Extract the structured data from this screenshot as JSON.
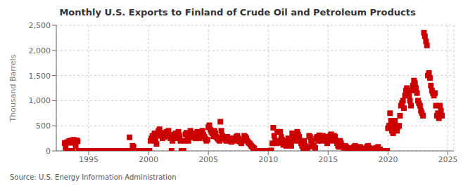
{
  "chart_data": {
    "type": "scatter",
    "title": "Monthly U.S. Exports to Finland of Crude Oil and Petroleum Products",
    "ylabel": "Thousand Barrels",
    "annotation": "Source: U.S. Energy Information Administration",
    "color": "#CC0000",
    "marker": "square",
    "grid": true,
    "xlim": [
      1992.3,
      2025.5
    ],
    "xticks": [
      1995,
      2000,
      2005,
      2010,
      2015,
      2020,
      2025
    ],
    "ylim": [
      0,
      2500
    ],
    "yticks": [
      0,
      500,
      {
        "value": 1000,
        "label": "1,000"
      },
      {
        "value": 1500,
        "label": "1,500"
      },
      {
        "value": 2000,
        "label": "2,000"
      },
      {
        "value": 2500,
        "label": "2,500"
      }
    ],
    "x": [
      1993.0,
      1993.08,
      1993.17,
      1993.25,
      1993.33,
      1993.42,
      1993.5,
      1993.58,
      1993.67,
      1993.75,
      1993.83,
      1993.92,
      1994.0,
      1994.08,
      1994.17,
      1994.25,
      1994.33,
      1994.42,
      1994.5,
      1994.58,
      1994.67,
      1994.75,
      1994.83,
      1994.92,
      1995.0,
      1995.08,
      1995.17,
      1995.25,
      1995.33,
      1995.42,
      1995.5,
      1995.58,
      1995.67,
      1995.75,
      1995.83,
      1995.92,
      1996.0,
      1996.08,
      1996.17,
      1996.25,
      1996.33,
      1996.42,
      1996.5,
      1996.58,
      1996.67,
      1996.75,
      1996.83,
      1996.92,
      1997.0,
      1997.08,
      1997.17,
      1997.25,
      1997.33,
      1997.42,
      1997.5,
      1997.58,
      1997.67,
      1997.75,
      1997.83,
      1997.92,
      1998.0,
      1998.08,
      1998.17,
      1998.25,
      1998.33,
      1998.42,
      1998.5,
      1998.58,
      1998.67,
      1998.75,
      1998.83,
      1998.92,
      1999.0,
      1999.08,
      1999.17,
      1999.25,
      1999.33,
      1999.42,
      1999.5,
      1999.58,
      1999.67,
      1999.75,
      1999.83,
      1999.92,
      2000.0,
      2000.08,
      2000.17,
      2000.25,
      2000.33,
      2000.42,
      2000.5,
      2000.58,
      2000.67,
      2000.75,
      2000.83,
      2000.92,
      2001.0,
      2001.08,
      2001.17,
      2001.25,
      2001.33,
      2001.42,
      2001.5,
      2001.58,
      2001.67,
      2001.75,
      2001.83,
      2001.92,
      2002.0,
      2002.08,
      2002.17,
      2002.25,
      2002.33,
      2002.42,
      2002.5,
      2002.58,
      2002.67,
      2002.75,
      2002.83,
      2002.92,
      2003.0,
      2003.08,
      2003.17,
      2003.25,
      2003.33,
      2003.42,
      2003.5,
      2003.58,
      2003.67,
      2003.75,
      2003.83,
      2003.92,
      2004.0,
      2004.08,
      2004.17,
      2004.25,
      2004.33,
      2004.42,
      2004.5,
      2004.58,
      2004.67,
      2004.75,
      2004.83,
      2004.92,
      2005.0,
      2005.08,
      2005.17,
      2005.25,
      2005.33,
      2005.42,
      2005.5,
      2005.58,
      2005.67,
      2005.75,
      2005.83,
      2005.92,
      2006.0,
      2006.08,
      2006.17,
      2006.25,
      2006.33,
      2006.42,
      2006.5,
      2006.58,
      2006.67,
      2006.75,
      2006.83,
      2006.92,
      2007.0,
      2007.08,
      2007.17,
      2007.25,
      2007.33,
      2007.42,
      2007.5,
      2007.58,
      2007.67,
      2007.75,
      2007.83,
      2007.92,
      2008.0,
      2008.08,
      2008.17,
      2008.25,
      2008.33,
      2008.42,
      2008.5,
      2008.58,
      2008.67,
      2008.75,
      2008.83,
      2008.92,
      2009.0,
      2009.08,
      2009.17,
      2009.25,
      2009.33,
      2009.42,
      2009.5,
      2009.58,
      2009.67,
      2009.75,
      2009.83,
      2009.92,
      2010.0,
      2010.08,
      2010.17,
      2010.25,
      2010.33,
      2010.42,
      2010.5,
      2010.58,
      2010.67,
      2010.75,
      2010.83,
      2010.92,
      2011.0,
      2011.08,
      2011.17,
      2011.25,
      2011.33,
      2011.42,
      2011.5,
      2011.58,
      2011.67,
      2011.75,
      2011.83,
      2011.92,
      2012.0,
      2012.08,
      2012.17,
      2012.25,
      2012.33,
      2012.42,
      2012.5,
      2012.58,
      2012.67,
      2012.75,
      2012.83,
      2012.92,
      2013.0,
      2013.08,
      2013.17,
      2013.25,
      2013.33,
      2013.42,
      2013.5,
      2013.58,
      2013.67,
      2013.75,
      2013.83,
      2013.92,
      2014.0,
      2014.08,
      2014.17,
      2014.25,
      2014.33,
      2014.42,
      2014.5,
      2014.58,
      2014.67,
      2014.75,
      2014.83,
      2014.92,
      2015.0,
      2015.08,
      2015.17,
      2015.25,
      2015.33,
      2015.42,
      2015.5,
      2015.58,
      2015.67,
      2015.75,
      2015.83,
      2015.92,
      2016.0,
      2016.08,
      2016.17,
      2016.25,
      2016.33,
      2016.42,
      2016.5,
      2016.58,
      2016.67,
      2016.75,
      2016.83,
      2016.92,
      2017.0,
      2017.08,
      2017.17,
      2017.25,
      2017.33,
      2017.42,
      2017.5,
      2017.58,
      2017.67,
      2017.75,
      2017.83,
      2017.92,
      2018.0,
      2018.08,
      2018.17,
      2018.25,
      2018.33,
      2018.42,
      2018.5,
      2018.58,
      2018.67,
      2018.75,
      2018.83,
      2018.92,
      2019.0,
      2019.08,
      2019.17,
      2019.25,
      2019.33,
      2019.42,
      2019.5,
      2019.58,
      2019.67,
      2019.75,
      2019.83,
      2019.92,
      2020.0,
      2020.08,
      2020.17,
      2020.25,
      2020.33,
      2020.42,
      2020.5,
      2020.58,
      2020.67,
      2020.75,
      2020.83,
      2020.92,
      2021.0,
      2021.08,
      2021.17,
      2021.25,
      2021.33,
      2021.42,
      2021.5,
      2021.58,
      2021.67,
      2021.75,
      2021.83,
      2021.92,
      2022.0,
      2022.08,
      2022.17,
      2022.25,
      2022.33,
      2022.42,
      2022.5,
      2022.58,
      2022.67,
      2022.75,
      2022.83,
      2022.92,
      2023.0,
      2023.08,
      2023.17,
      2023.25,
      2023.33,
      2023.42,
      2023.5,
      2023.58,
      2023.67,
      2023.75,
      2023.83,
      2023.92,
      2024.0,
      2024.08,
      2024.17,
      2024.25,
      2024.33,
      2024.42,
      2024.5
    ],
    "values": [
      155,
      60,
      170,
      0,
      190,
      200,
      160,
      210,
      0,
      220,
      180,
      100,
      210,
      190,
      0,
      0,
      0,
      0,
      0,
      0,
      0,
      0,
      0,
      0,
      0,
      0,
      0,
      0,
      0,
      0,
      0,
      0,
      0,
      0,
      0,
      0,
      0,
      0,
      0,
      0,
      0,
      0,
      0,
      0,
      0,
      0,
      0,
      0,
      0,
      0,
      0,
      0,
      0,
      0,
      0,
      0,
      0,
      0,
      0,
      0,
      0,
      0,
      0,
      0,
      0,
      270,
      0,
      0,
      100,
      80,
      0,
      0,
      0,
      0,
      0,
      0,
      0,
      0,
      0,
      0,
      0,
      0,
      0,
      0,
      0,
      0,
      200,
      250,
      300,
      280,
      350,
      200,
      140,
      310,
      390,
      430,
      360,
      300,
      250,
      310,
      280,
      350,
      380,
      320,
      400,
      300,
      250,
      0,
      200,
      320,
      280,
      350,
      300,
      250,
      380,
      300,
      200,
      0,
      0,
      0,
      200,
      330,
      360,
      250,
      200,
      280,
      400,
      310,
      270,
      350,
      300,
      250,
      300,
      380,
      320,
      250,
      280,
      350,
      400,
      320,
      280,
      240,
      200,
      220,
      470,
      510,
      420,
      380,
      350,
      290,
      400,
      350,
      280,
      250,
      230,
      200,
      580,
      400,
      300,
      250,
      260,
      220,
      200,
      280,
      230,
      210,
      200,
      180,
      250,
      230,
      210,
      200,
      280,
      300,
      250,
      200,
      180,
      150,
      200,
      220,
      300,
      280,
      250,
      200,
      170,
      150,
      130,
      100,
      80,
      60,
      50,
      0,
      0,
      0,
      0,
      0,
      0,
      0,
      0,
      0,
      0,
      0,
      0,
      0,
      0,
      0,
      0,
      10,
      150,
      460,
      300,
      200,
      150,
      380,
      200,
      160,
      380,
      280,
      220,
      120,
      160,
      130,
      100,
      200,
      250,
      180,
      140,
      100,
      350,
      300,
      250,
      200,
      300,
      380,
      320,
      280,
      200,
      150,
      100,
      50,
      200,
      100,
      60,
      50,
      80,
      300,
      280,
      200,
      150,
      100,
      80,
      60,
      250,
      280,
      200,
      310,
      280,
      200,
      220,
      300,
      250,
      280,
      200,
      150,
      200,
      280,
      300,
      330,
      250,
      200,
      300,
      280,
      200,
      150,
      100,
      80,
      200,
      150,
      100,
      80,
      60,
      100,
      80,
      60,
      50,
      40,
      30,
      20,
      50,
      60,
      80,
      100,
      50,
      40,
      30,
      60,
      80,
      50,
      30,
      20,
      30,
      20,
      50,
      80,
      100,
      60,
      50,
      30,
      20,
      0,
      0,
      0,
      60,
      50,
      80,
      0,
      30,
      0,
      0,
      0,
      0,
      0,
      0,
      0,
      450,
      500,
      750,
      600,
      400,
      350,
      500,
      600,
      450,
      400,
      480,
      500,
      700,
      900,
      950,
      1000,
      850,
      1100,
      1200,
      1250,
      1150,
      1100,
      1000,
      900,
      1200,
      1300,
      1400,
      1350,
      1250,
      1150,
      1000,
      950,
      900,
      800,
      750,
      700,
      2350,
      2280,
      2180,
      2100,
      1500,
      1550,
      1450,
      1300,
      1200,
      1150,
      1100,
      1150,
      900,
      700,
      750,
      650,
      900,
      800,
      700
    ]
  }
}
